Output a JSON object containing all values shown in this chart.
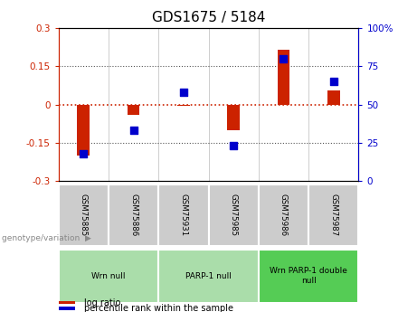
{
  "title": "GDS1675 / 5184",
  "samples": [
    "GSM75885",
    "GSM75886",
    "GSM75931",
    "GSM75985",
    "GSM75986",
    "GSM75987"
  ],
  "log_ratio": [
    -0.2,
    -0.04,
    -0.005,
    -0.1,
    0.215,
    0.055
  ],
  "percentile_rank": [
    18,
    33,
    58,
    23,
    80,
    65
  ],
  "ylim_left": [
    -0.3,
    0.3
  ],
  "ylim_right": [
    0,
    100
  ],
  "yticks_left": [
    -0.3,
    -0.15,
    0,
    0.15,
    0.3
  ],
  "yticks_right": [
    0,
    25,
    50,
    75,
    100
  ],
  "groups": [
    {
      "label": "Wrn null",
      "start": 0,
      "end": 2,
      "color": "#aaddaa"
    },
    {
      "label": "PARP-1 null",
      "start": 2,
      "end": 4,
      "color": "#aaddaa"
    },
    {
      "label": "Wrn PARP-1 double\nnull",
      "start": 4,
      "end": 6,
      "color": "#55cc55"
    }
  ],
  "bar_color": "#cc2200",
  "scatter_color": "#0000cc",
  "zero_line_color": "#cc2200",
  "dotted_line_color": "#555555",
  "bg_plot": "#ffffff",
  "bg_label": "#cccccc",
  "legend_items": [
    "log ratio",
    "percentile rank within the sample"
  ],
  "legend_colors": [
    "#cc2200",
    "#0000cc"
  ],
  "genotype_label": "genotype/variation",
  "title_fontsize": 11,
  "tick_fontsize": 7.5,
  "label_fontsize": 7.0,
  "bar_width": 0.25,
  "scatter_size": 28
}
